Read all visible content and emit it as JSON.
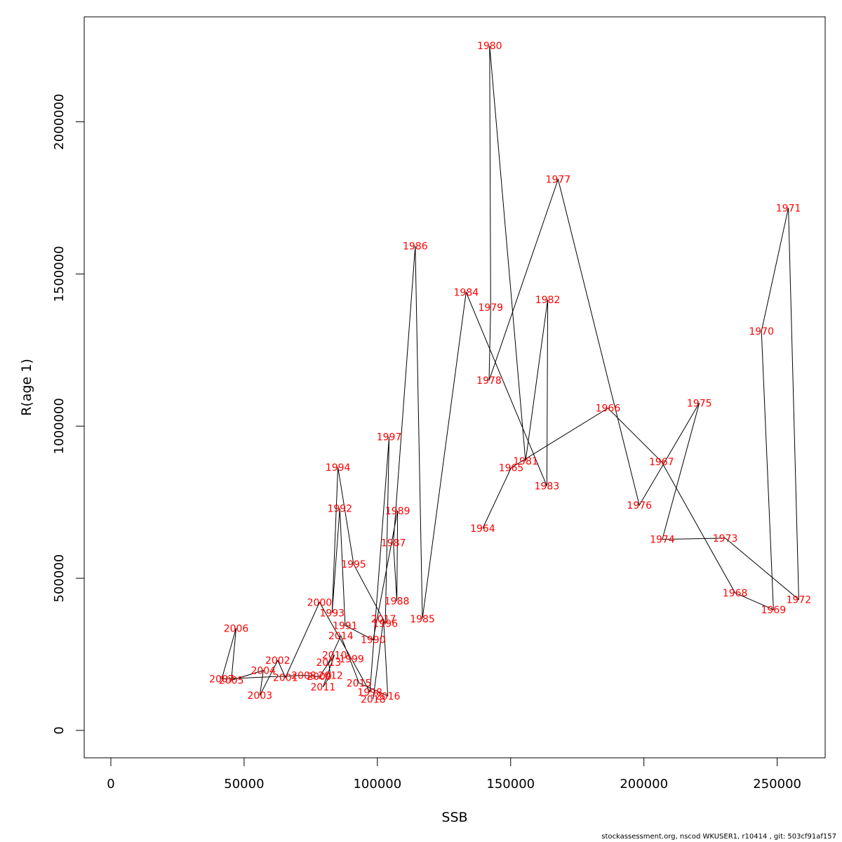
{
  "chart_data": {
    "type": "line",
    "xlabel": "SSB",
    "ylabel": "R(age 1)",
    "xlim": [
      -10000,
      268000
    ],
    "ylim": [
      -90000,
      2345000
    ],
    "x_ticks": [
      0,
      50000,
      100000,
      150000,
      200000,
      250000
    ],
    "y_ticks": [
      0,
      500000,
      1000000,
      1500000,
      2000000
    ],
    "x_tick_labels": [
      "0",
      "50000",
      "100000",
      "150000",
      "200000",
      "250000"
    ],
    "y_tick_labels": [
      "0",
      "500000",
      "1000000",
      "1500000",
      "2000000"
    ],
    "grid": false,
    "line_color": "#000000",
    "label_color": "#ff0000",
    "points": [
      {
        "label": "1964",
        "x": 139500,
        "y": 664000
      },
      {
        "label": "1965",
        "x": 150200,
        "y": 863000
      },
      {
        "label": "1966",
        "x": 186500,
        "y": 1059000
      },
      {
        "label": "1967",
        "x": 206600,
        "y": 883000
      },
      {
        "label": "1968",
        "x": 234200,
        "y": 452000
      },
      {
        "label": "1969",
        "x": 248600,
        "y": 397000
      },
      {
        "label": "1970",
        "x": 244100,
        "y": 1312000
      },
      {
        "label": "1971",
        "x": 254200,
        "y": 1717000
      },
      {
        "label": "1972",
        "x": 258100,
        "y": 430000
      },
      {
        "label": "1973",
        "x": 230500,
        "y": 632000
      },
      {
        "label": "1974",
        "x": 206900,
        "y": 628000
      },
      {
        "label": "1975",
        "x": 220800,
        "y": 1076000
      },
      {
        "label": "1976",
        "x": 198300,
        "y": 740000
      },
      {
        "label": "1977",
        "x": 167800,
        "y": 1811000
      },
      {
        "label": "1978",
        "x": 141900,
        "y": 1150000
      },
      {
        "label": "1979",
        "x": 142500,
        "y": 1390000
      },
      {
        "label": "1980",
        "x": 142100,
        "y": 2250000
      },
      {
        "label": "1981",
        "x": 155600,
        "y": 885000
      },
      {
        "label": "1982",
        "x": 163900,
        "y": 1416000
      },
      {
        "label": "1983",
        "x": 163600,
        "y": 803000
      },
      {
        "label": "1984",
        "x": 133300,
        "y": 1440000
      },
      {
        "label": "1985",
        "x": 116900,
        "y": 367000
      },
      {
        "label": "1986",
        "x": 114200,
        "y": 1592000
      },
      {
        "label": "1987",
        "x": 106000,
        "y": 617000
      },
      {
        "label": "1988",
        "x": 107300,
        "y": 425000
      },
      {
        "label": "1989",
        "x": 107600,
        "y": 722000
      },
      {
        "label": "1990",
        "x": 98400,
        "y": 298000
      },
      {
        "label": "1991",
        "x": 87900,
        "y": 345000
      },
      {
        "label": "1992",
        "x": 85900,
        "y": 730000
      },
      {
        "label": "1993",
        "x": 83000,
        "y": 386000
      },
      {
        "label": "1994",
        "x": 85200,
        "y": 865000
      },
      {
        "label": "1995",
        "x": 91100,
        "y": 546000
      },
      {
        "label": "1996",
        "x": 103000,
        "y": 352000
      },
      {
        "label": "1997",
        "x": 104400,
        "y": 965000
      },
      {
        "label": "1998",
        "x": 97200,
        "y": 126000
      },
      {
        "label": "1999",
        "x": 90300,
        "y": 235000
      },
      {
        "label": "2000",
        "x": 78300,
        "y": 421000
      },
      {
        "label": "2001",
        "x": 65500,
        "y": 174000
      },
      {
        "label": "2002",
        "x": 62600,
        "y": 230000
      },
      {
        "label": "2003",
        "x": 55900,
        "y": 115000
      },
      {
        "label": "2004",
        "x": 57200,
        "y": 197000
      },
      {
        "label": "2005",
        "x": 45200,
        "y": 165000
      },
      {
        "label": "2006",
        "x": 47000,
        "y": 336000
      },
      {
        "label": "2007",
        "x": 41600,
        "y": 169000
      },
      {
        "label": "2008",
        "x": 72400,
        "y": 181000
      },
      {
        "label": "2009",
        "x": 78200,
        "y": 177000
      },
      {
        "label": "2010",
        "x": 83900,
        "y": 248000
      },
      {
        "label": "2011",
        "x": 79600,
        "y": 143000
      },
      {
        "label": "2012",
        "x": 82400,
        "y": 181000
      },
      {
        "label": "2013",
        "x": 81700,
        "y": 224000
      },
      {
        "label": "2014",
        "x": 86300,
        "y": 311000
      },
      {
        "label": "2015",
        "x": 93100,
        "y": 156000
      },
      {
        "label": "2016",
        "x": 103900,
        "y": 113000
      },
      {
        "label": "2017",
        "x": 102300,
        "y": 366000
      },
      {
        "label": "2018",
        "x": 98400,
        "y": 103000
      }
    ]
  },
  "footer": "stockassessment.org, nscod  WKUSER1, r10414 , git: 503cf91af157"
}
